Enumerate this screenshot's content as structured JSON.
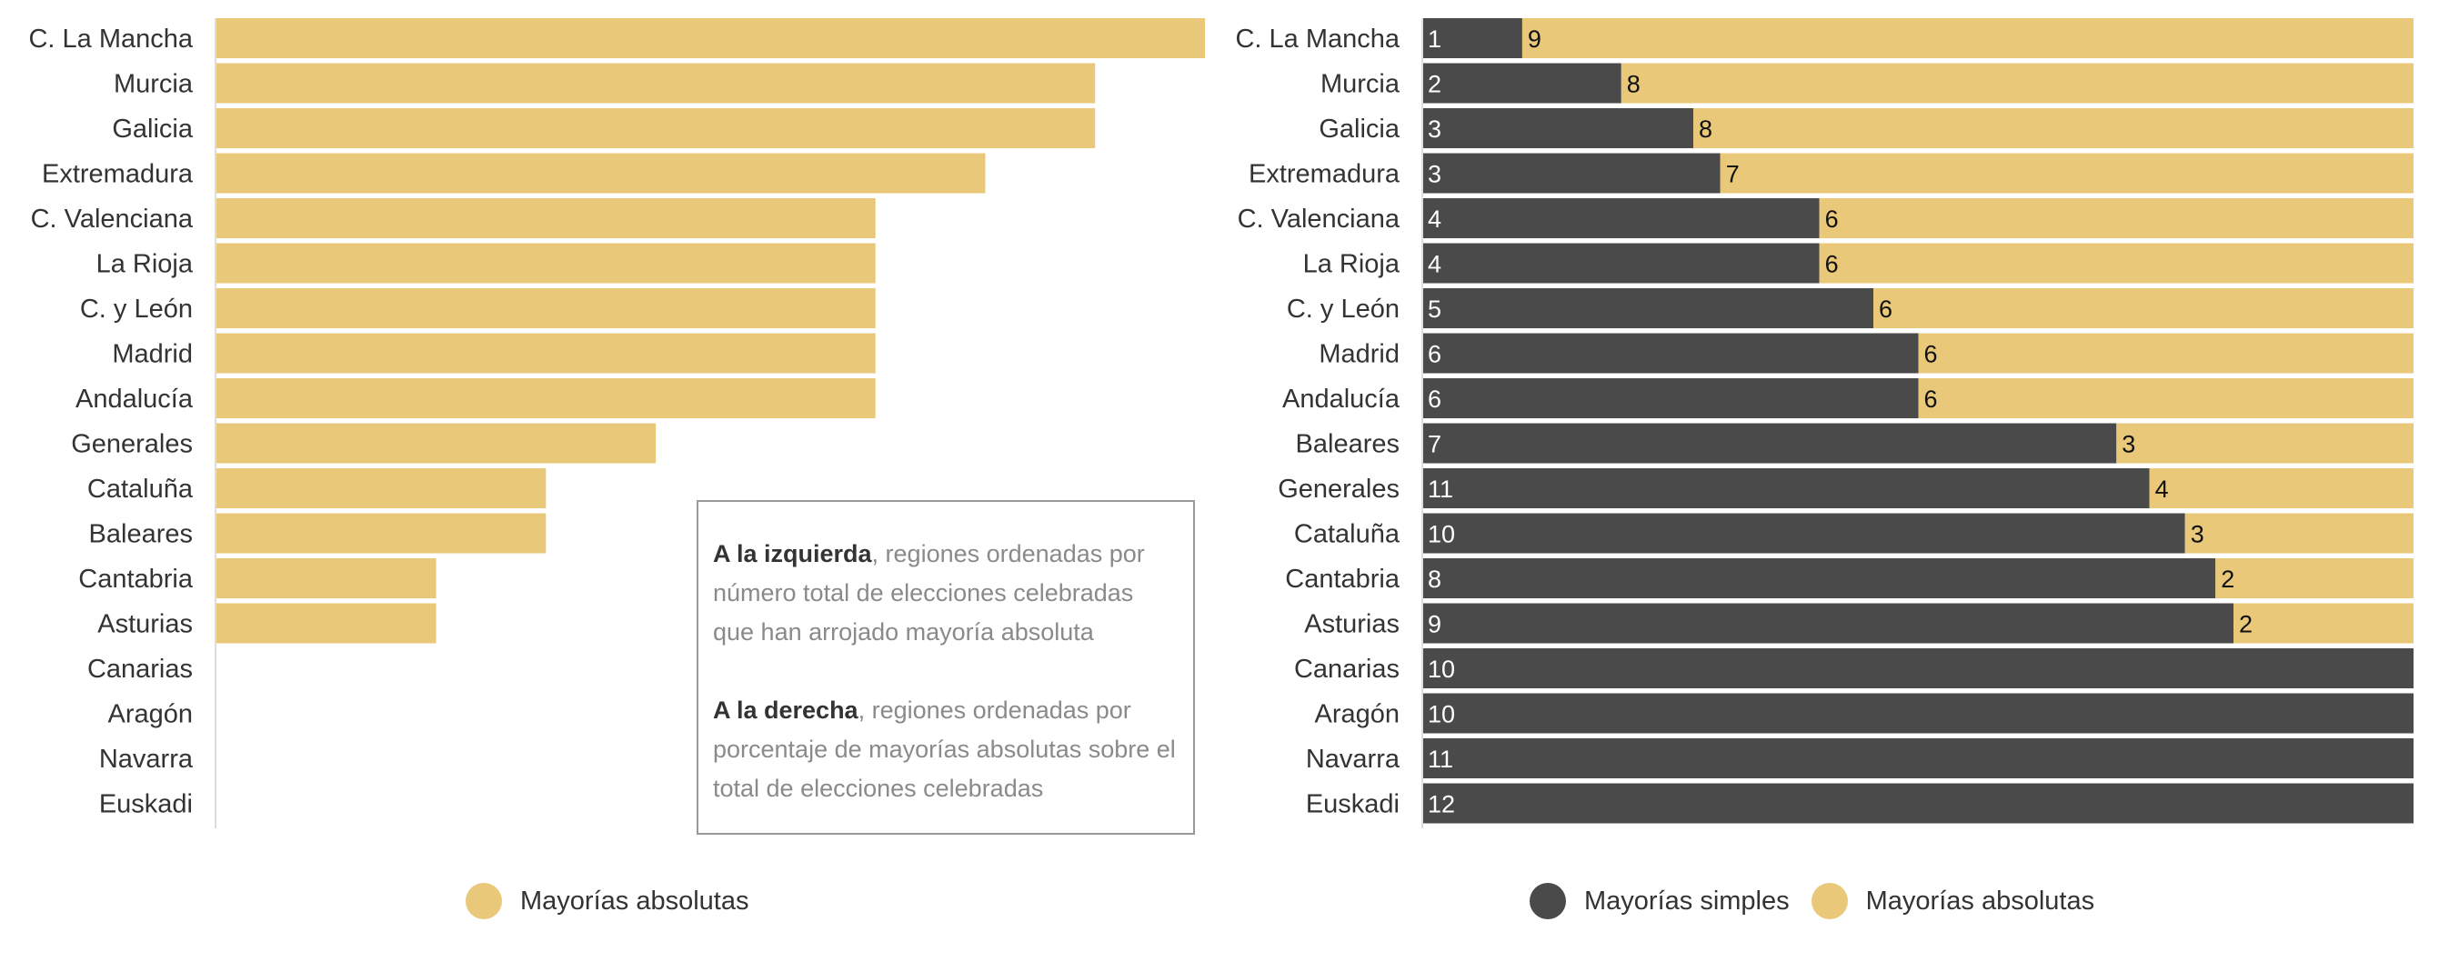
{
  "colors": {
    "absolute": "#e9c979",
    "simple": "#4a4a4a",
    "axis": "#dddddd"
  },
  "note": {
    "left_bold": "A la izquierda",
    "left_text": ", regiones ordenadas por número total de elecciones celebradas que han arrojado mayoría absoluta",
    "right_bold": "A la derecha",
    "right_text": ", regiones ordenadas por porcentaje de mayorías absolutas sobre el total de elecciones celebradas"
  },
  "legend_left": {
    "absolute": "Mayorías absolutas"
  },
  "legend_right": {
    "simple": "Mayorías simples",
    "absolute": "Mayorías absolutas"
  },
  "chart_data": [
    {
      "type": "bar",
      "orientation": "horizontal",
      "categories": [
        "C. La Mancha",
        "Murcia",
        "Galicia",
        "Extremadura",
        "C. Valenciana",
        "La Rioja",
        "C. y León",
        "Madrid",
        "Andalucía",
        "Generales",
        "Cataluña",
        "Baleares",
        "Cantabria",
        "Asturias",
        "Canarias",
        "Aragón",
        "Navarra",
        "Euskadi"
      ],
      "series": [
        {
          "name": "Mayorías absolutas",
          "values": [
            9,
            8,
            8,
            7,
            6,
            6,
            6,
            6,
            6,
            4,
            3,
            3,
            2,
            2,
            0,
            0,
            0,
            0
          ]
        }
      ],
      "xlim": [
        0,
        9
      ],
      "grid": false,
      "legend": "bottom"
    },
    {
      "type": "bar",
      "orientation": "horizontal",
      "stacked": true,
      "categories": [
        "C. La Mancha",
        "Murcia",
        "Galicia",
        "Extremadura",
        "C. Valenciana",
        "La Rioja",
        "C. y León",
        "Madrid",
        "Andalucía",
        "Baleares",
        "Generales",
        "Cataluña",
        "Cantabria",
        "Asturias",
        "Canarias",
        "Aragón",
        "Navarra",
        "Euskadi"
      ],
      "series": [
        {
          "name": "Mayorías simples",
          "values": [
            1,
            2,
            3,
            3,
            4,
            4,
            5,
            6,
            6,
            7,
            11,
            10,
            8,
            9,
            10,
            10,
            11,
            12
          ]
        },
        {
          "name": "Mayorías absolutas",
          "values": [
            9,
            8,
            8,
            7,
            6,
            6,
            6,
            6,
            6,
            3,
            4,
            3,
            2,
            2,
            0,
            0,
            0,
            0
          ]
        }
      ],
      "xlim": [
        0,
        100
      ],
      "x_unit": "percent of total elections",
      "grid": false,
      "legend": "bottom"
    }
  ]
}
